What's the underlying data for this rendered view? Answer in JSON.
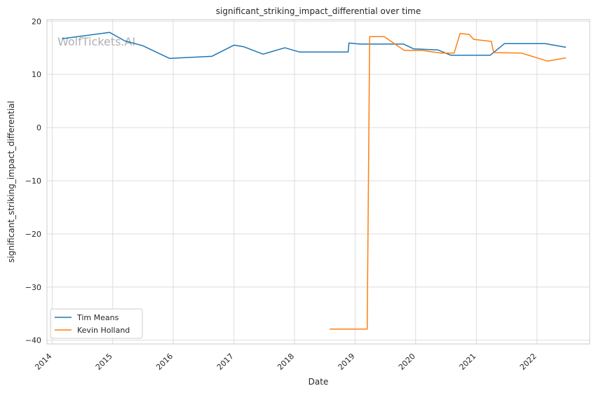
{
  "chart_data": {
    "type": "line",
    "title": "significant_striking_impact_differential over time",
    "xlabel": "Date",
    "ylabel": "significant_striking_impact_differential",
    "x_type": "date",
    "xlim": [
      "2013-12-01",
      "2022-11-15"
    ],
    "ylim": [
      -40.7,
      20.3
    ],
    "x_ticks": [
      "2014",
      "2015",
      "2016",
      "2017",
      "2018",
      "2019",
      "2020",
      "2021",
      "2022"
    ],
    "y_ticks": [
      20,
      10,
      0,
      -10,
      -20,
      -30,
      -40
    ],
    "y_tick_labels": [
      "20",
      "10",
      "0",
      "−10",
      "−20",
      "−30",
      "−40"
    ],
    "grid": true,
    "legend_position": "lower-left",
    "watermark": "WolfTickets.AI",
    "series": [
      {
        "name": "Tim Means",
        "color": "#1f77b4",
        "points": [
          [
            "2014-03-01",
            16.7
          ],
          [
            "2014-12-13",
            17.9
          ],
          [
            "2015-03-15",
            16.3
          ],
          [
            "2015-07-01",
            15.4
          ],
          [
            "2015-12-10",
            13.0
          ],
          [
            "2016-08-20",
            13.4
          ],
          [
            "2017-01-01",
            15.5
          ],
          [
            "2017-03-01",
            15.2
          ],
          [
            "2017-06-25",
            13.8
          ],
          [
            "2017-11-04",
            15.0
          ],
          [
            "2018-02-01",
            14.2
          ],
          [
            "2018-11-20",
            14.2
          ],
          [
            "2018-11-25",
            15.9
          ],
          [
            "2019-02-01",
            15.7
          ],
          [
            "2019-10-20",
            15.7
          ],
          [
            "2019-12-20",
            14.8
          ],
          [
            "2020-05-15",
            14.6
          ],
          [
            "2020-08-01",
            13.6
          ],
          [
            "2021-03-01",
            13.6
          ],
          [
            "2021-03-25",
            13.6
          ],
          [
            "2021-06-20",
            15.8
          ],
          [
            "2022-02-20",
            15.8
          ],
          [
            "2022-06-25",
            15.1
          ]
        ]
      },
      {
        "name": "Kevin Holland",
        "color": "#ff7f0e",
        "points": [
          [
            "2018-08-01",
            -37.9
          ],
          [
            "2019-03-15",
            -37.9
          ],
          [
            "2019-03-30",
            17.1
          ],
          [
            "2019-06-25",
            17.1
          ],
          [
            "2019-10-25",
            14.5
          ],
          [
            "2020-02-10",
            14.5
          ],
          [
            "2020-06-01",
            14.0
          ],
          [
            "2020-08-20",
            14.0
          ],
          [
            "2020-09-25",
            17.7
          ],
          [
            "2020-11-20",
            17.5
          ],
          [
            "2020-12-15",
            16.6
          ],
          [
            "2021-04-01",
            16.2
          ],
          [
            "2021-04-15",
            14.1
          ],
          [
            "2021-10-01",
            14.0
          ],
          [
            "2022-03-05",
            12.5
          ],
          [
            "2022-06-25",
            13.1
          ]
        ]
      }
    ]
  }
}
